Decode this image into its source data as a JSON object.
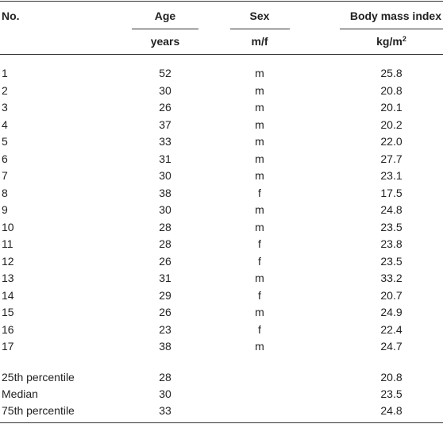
{
  "table": {
    "header": {
      "no": "No.",
      "age": "Age",
      "sex": "Sex",
      "bmi": "Body mass index"
    },
    "units": {
      "age": "years",
      "sex": "m/f",
      "bmi": {
        "text": "kg/m",
        "sup": "2"
      }
    },
    "rows": [
      [
        "1",
        "52",
        "m",
        "25.8"
      ],
      [
        "2",
        "30",
        "m",
        "20.8"
      ],
      [
        "3",
        "26",
        "m",
        "20.1"
      ],
      [
        "4",
        "37",
        "m",
        "20.2"
      ],
      [
        "5",
        "33",
        "m",
        "22.0"
      ],
      [
        "6",
        "31",
        "m",
        "27.7"
      ],
      [
        "7",
        "30",
        "m",
        "23.1"
      ],
      [
        "8",
        "38",
        "f",
        "17.5"
      ],
      [
        "9",
        "30",
        "m",
        "24.8"
      ],
      [
        "10",
        "28",
        "m",
        "23.5"
      ],
      [
        "11",
        "28",
        "f",
        "23.8"
      ],
      [
        "12",
        "26",
        "f",
        "23.5"
      ],
      [
        "13",
        "31",
        "m",
        "33.2"
      ],
      [
        "14",
        "29",
        "f",
        "20.7"
      ],
      [
        "15",
        "26",
        "m",
        "24.9"
      ],
      [
        "16",
        "23",
        "f",
        "22.4"
      ],
      [
        "17",
        "38",
        "m",
        "24.7"
      ]
    ],
    "summary": [
      {
        "label": "25th percentile",
        "age": "28",
        "bmi": "20.8"
      },
      {
        "label": "Median",
        "age": "30",
        "bmi": "23.5"
      },
      {
        "label": "75th percentile",
        "age": "33",
        "bmi": "24.8"
      }
    ]
  }
}
